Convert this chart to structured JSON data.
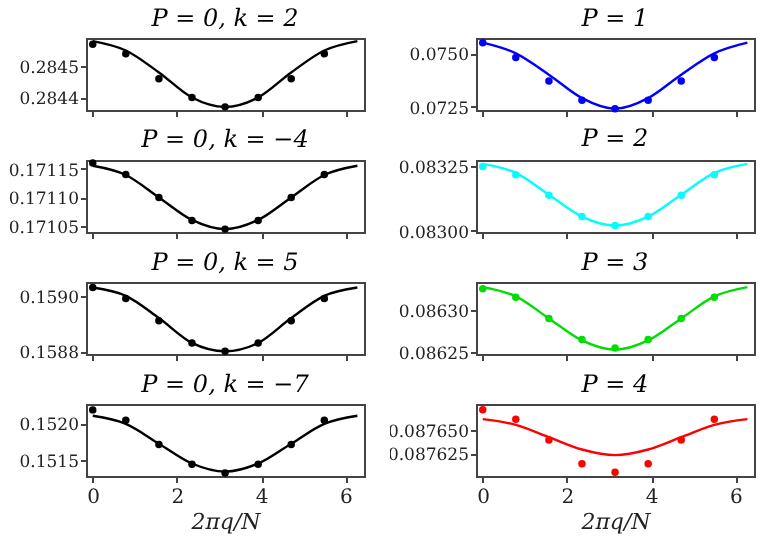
{
  "chart_data": [
    {
      "type": "scatter",
      "title": "P = 0, k = 2",
      "tick_labels": "y",
      "xlim": [
        -0.16,
        6.44
      ],
      "xticks": [
        {
          "value": 0,
          "label": null
        },
        {
          "value": 2,
          "label": null
        },
        {
          "value": 4,
          "label": null
        },
        {
          "value": 6,
          "label": null
        }
      ],
      "ylim": [
        0.28436,
        0.28459
      ],
      "yticks": [
        0.2844,
        0.2845
      ],
      "series": [
        {
          "type": "line",
          "marker": "none",
          "color": "#000000",
          "x": [
            0,
            0.785,
            1.571,
            2.356,
            3.142,
            3.927,
            4.712,
            5.498,
            6.283
          ],
          "values": [
            0.28458,
            0.28455,
            0.28448,
            0.2844,
            0.28437,
            0.2844,
            0.28448,
            0.28455,
            0.28458
          ]
        },
        {
          "type": "scatter",
          "marker": "circle",
          "color": "#000000",
          "x": [
            0,
            0.785,
            1.571,
            2.356,
            3.142,
            3.927,
            4.712,
            5.498
          ],
          "values": [
            0.28457,
            0.28454,
            0.28446,
            0.2844,
            0.28437,
            0.2844,
            0.28446,
            0.28454
          ]
        }
      ]
    },
    {
      "type": "scatter",
      "title": "P = 1",
      "tick_labels": "y",
      "xlim": [
        -0.16,
        6.44
      ],
      "xticks": [
        {
          "value": 0,
          "label": null
        },
        {
          "value": 2,
          "label": null
        },
        {
          "value": 4,
          "label": null
        },
        {
          "value": 6,
          "label": null
        }
      ],
      "ylim": [
        0.07234,
        0.07572
      ],
      "yticks": [
        {
          "value": 0.0725,
          "label": "0.0725"
        },
        {
          "value": 0.075,
          "label": "0.0750"
        }
      ],
      "series": [
        {
          "type": "line",
          "marker": "none",
          "color": "#0000ff",
          "x": [
            0,
            0.785,
            1.571,
            2.356,
            3.142,
            3.927,
            4.712,
            5.498,
            6.283
          ],
          "values": [
            0.0755,
            0.075,
            0.074,
            0.0729,
            0.0724,
            0.0729,
            0.074,
            0.075,
            0.0755
          ]
        },
        {
          "type": "scatter",
          "marker": "circle",
          "color": "#0000ff",
          "x": [
            0,
            0.785,
            1.571,
            2.356,
            3.142,
            3.927,
            4.712,
            5.498
          ],
          "values": [
            0.0755,
            0.0748,
            0.0737,
            0.0728,
            0.0724,
            0.0728,
            0.0737,
            0.0748
          ]
        }
      ]
    },
    {
      "type": "scatter",
      "title": "P = 0, k = −4",
      "tick_labels": "y",
      "xlim": [
        -0.16,
        6.44
      ],
      "xticks": [
        {
          "value": 0,
          "label": null
        },
        {
          "value": 2,
          "label": null
        },
        {
          "value": 4,
          "label": null
        },
        {
          "value": 6,
          "label": null
        }
      ],
      "ylim": [
        0.17104,
        0.171165
      ],
      "yticks": [
        0.17105,
        {
          "value": 0.1711,
          "label": "0.17110"
        },
        0.17115
      ],
      "series": [
        {
          "type": "line",
          "marker": "none",
          "color": "#000000",
          "x": [
            0,
            0.785,
            1.571,
            2.356,
            3.142,
            3.927,
            4.712,
            5.498,
            6.283
          ],
          "values": [
            0.171155,
            0.171139,
            0.1711,
            0.171061,
            0.171045,
            0.171061,
            0.1711,
            0.171139,
            0.171155
          ]
        },
        {
          "type": "scatter",
          "marker": "circle",
          "color": "#000000",
          "x": [
            0,
            0.785,
            1.571,
            2.356,
            3.142,
            3.927,
            4.712,
            5.498
          ],
          "values": [
            0.17116,
            0.17114,
            0.1711,
            0.17106,
            0.171045,
            0.17106,
            0.1711,
            0.17114
          ]
        }
      ]
    },
    {
      "type": "scatter",
      "title": "P = 2",
      "tick_labels": "y",
      "xlim": [
        -0.16,
        6.44
      ],
      "xticks": [
        {
          "value": 0,
          "label": null
        },
        {
          "value": 2,
          "label": null
        },
        {
          "value": 4,
          "label": null
        },
        {
          "value": 6,
          "label": null
        }
      ],
      "ylim": [
        0.082995,
        0.083275
      ],
      "yticks": [
        {
          "value": 0.083,
          "label": "0.08300"
        },
        0.08325
      ],
      "series": [
        {
          "type": "line",
          "marker": "none",
          "color": "#00ffff",
          "x": [
            0,
            0.785,
            1.571,
            2.356,
            3.142,
            3.927,
            4.712,
            5.498,
            6.283
          ],
          "values": [
            0.08326,
            0.083225,
            0.08314,
            0.083055,
            0.08302,
            0.083055,
            0.08314,
            0.083225,
            0.08326
          ]
        },
        {
          "type": "scatter",
          "marker": "circle",
          "color": "#00ffff",
          "x": [
            0,
            0.785,
            1.571,
            2.356,
            3.142,
            3.927,
            4.712,
            5.498
          ],
          "values": [
            0.08325,
            0.083218,
            0.083138,
            0.083055,
            0.08302,
            0.083055,
            0.083138,
            0.083218
          ]
        }
      ]
    },
    {
      "type": "scatter",
      "title": "P = 0, k = 5",
      "tick_labels": "y",
      "xlim": [
        -0.16,
        6.44
      ],
      "xticks": [
        {
          "value": 0,
          "label": null
        },
        {
          "value": 2,
          "label": null
        },
        {
          "value": 4,
          "label": null
        },
        {
          "value": 6,
          "label": null
        }
      ],
      "ylim": [
        0.15879,
        0.15905
      ],
      "yticks": [
        0.1588,
        {
          "value": 0.159,
          "label": "0.1590"
        }
      ],
      "series": [
        {
          "type": "line",
          "marker": "none",
          "color": "#000000",
          "x": [
            0,
            0.785,
            1.571,
            2.356,
            3.142,
            3.927,
            4.712,
            5.498,
            6.283
          ],
          "values": [
            0.15903,
            0.159,
            0.15892,
            0.15883,
            0.1588,
            0.15883,
            0.15892,
            0.159,
            0.15903
          ]
        },
        {
          "type": "scatter",
          "marker": "circle",
          "color": "#000000",
          "x": [
            0,
            0.785,
            1.571,
            2.356,
            3.142,
            3.927,
            4.712,
            5.498
          ],
          "values": [
            0.15903,
            0.15899,
            0.15891,
            0.15883,
            0.1588,
            0.15883,
            0.15891,
            0.15899
          ]
        }
      ]
    },
    {
      "type": "scatter",
      "title": "P = 3",
      "tick_labels": "y",
      "xlim": [
        -0.16,
        6.44
      ],
      "xticks": [
        {
          "value": 0,
          "label": null
        },
        {
          "value": 2,
          "label": null
        },
        {
          "value": 4,
          "label": null
        },
        {
          "value": 6,
          "label": null
        }
      ],
      "ylim": [
        0.086248,
        0.086333
      ],
      "yticks": [
        0.08625,
        {
          "value": 0.0863,
          "label": "0.08630"
        }
      ],
      "series": [
        {
          "type": "line",
          "marker": "none",
          "color": "#00dd00",
          "x": [
            0,
            0.785,
            1.571,
            2.356,
            3.142,
            3.927,
            4.712,
            5.498,
            6.283
          ],
          "values": [
            0.086327,
            0.086316,
            0.08629,
            0.086264,
            0.086253,
            0.086264,
            0.08629,
            0.086316,
            0.086327
          ]
        },
        {
          "type": "scatter",
          "marker": "circle",
          "color": "#00dd00",
          "x": [
            0,
            0.785,
            1.571,
            2.356,
            3.142,
            3.927,
            4.712,
            5.498
          ],
          "values": [
            0.086325,
            0.086315,
            0.08629,
            0.086265,
            0.086255,
            0.086265,
            0.08629,
            0.086315
          ]
        }
      ]
    },
    {
      "type": "scatter",
      "title": "P = 0, k = −7",
      "xlabel": "2πq/N",
      "xlim": [
        -0.16,
        6.44
      ],
      "xticks": [
        0,
        2,
        4,
        6
      ],
      "ylim": [
        0.15128,
        0.15226
      ],
      "yticks": [
        {
          "value": 0.1515,
          "label": "0.1515"
        },
        {
          "value": 0.152,
          "label": "0.1520"
        }
      ],
      "series": [
        {
          "type": "line",
          "marker": "none",
          "color": "#000000",
          "x": [
            0,
            0.785,
            1.571,
            2.356,
            3.142,
            3.927,
            4.712,
            5.498,
            6.283
          ],
          "values": [
            0.1521,
            0.15199,
            0.15172,
            0.15145,
            0.15134,
            0.15145,
            0.15172,
            0.15199,
            0.1521
          ]
        },
        {
          "type": "scatter",
          "marker": "circle",
          "color": "#000000",
          "x": [
            0,
            0.785,
            1.571,
            2.356,
            3.142,
            3.927,
            4.712,
            5.498
          ],
          "values": [
            0.15218,
            0.15204,
            0.15171,
            0.15144,
            0.15132,
            0.15144,
            0.15171,
            0.15204
          ]
        }
      ]
    },
    {
      "type": "scatter",
      "title": "P = 4",
      "xlabel": "2πq/N",
      "xlim": [
        -0.16,
        6.44
      ],
      "xticks": [
        0,
        2,
        4,
        6
      ],
      "ylim": [
        0.087601,
        0.087677
      ],
      "yticks": [
        {
          "value": 0.087625,
          "label": "0.087625"
        },
        {
          "value": 0.08765,
          "label": "0.087650"
        }
      ],
      "series": [
        {
          "type": "line",
          "marker": "none",
          "color": "#ff0000",
          "x": [
            0,
            0.785,
            1.571,
            2.356,
            3.142,
            3.927,
            4.712,
            5.498,
            6.283
          ],
          "values": [
            0.087661,
            0.087655,
            0.087642,
            0.087629,
            0.087623,
            0.087629,
            0.087642,
            0.087655,
            0.087661
          ]
        },
        {
          "type": "scatter",
          "marker": "circle",
          "color": "#ff0000",
          "x": [
            0,
            0.785,
            1.571,
            2.356,
            3.142,
            3.927,
            4.712,
            5.498
          ],
          "values": [
            0.087671,
            0.087661,
            0.087639,
            0.087614,
            0.087605,
            0.087614,
            0.087639,
            0.087661
          ]
        }
      ]
    }
  ]
}
